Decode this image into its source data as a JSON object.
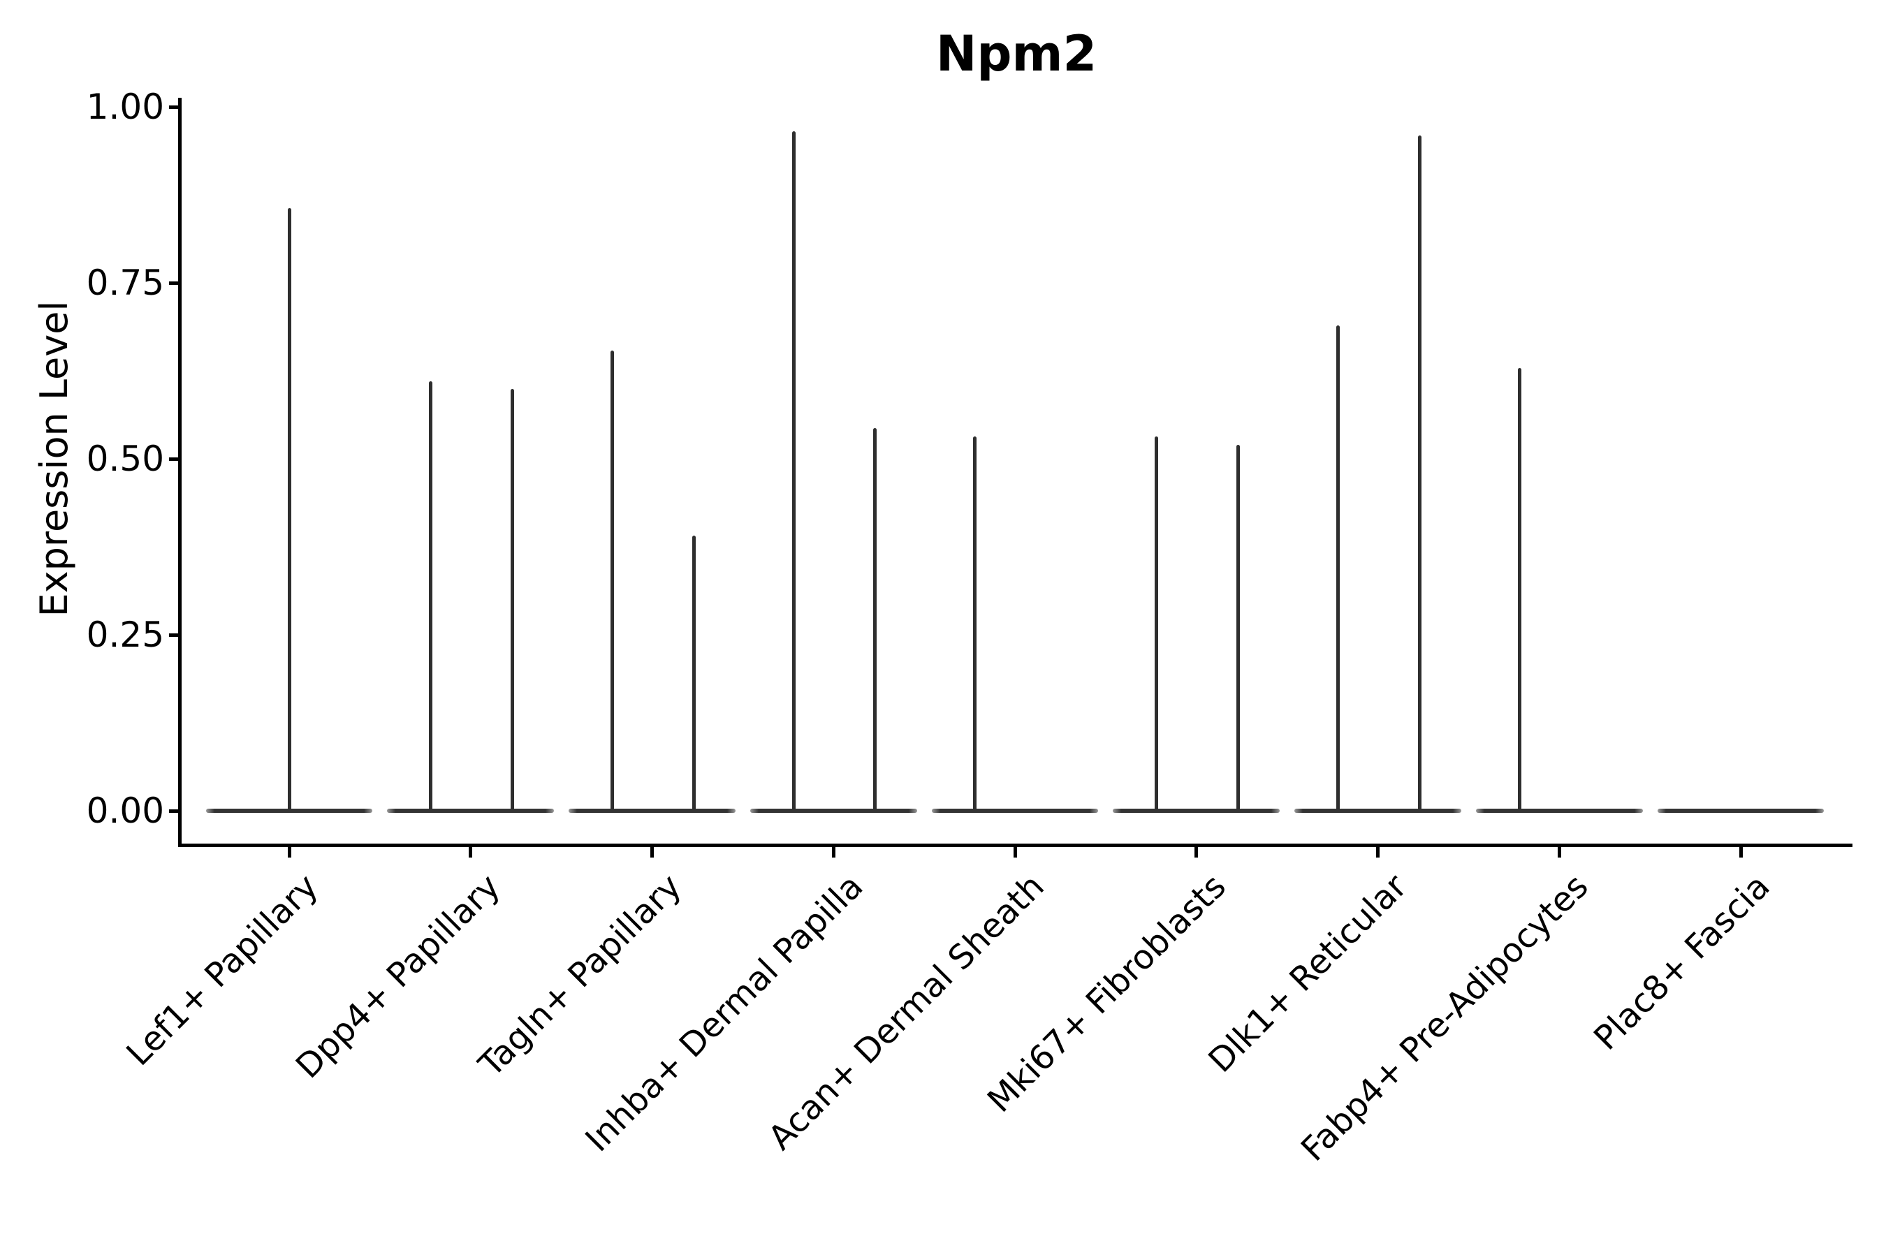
{
  "title": "Npm2",
  "y_axis": {
    "label": "Expression Level",
    "ticks": [
      {
        "label": "1.00",
        "value": 1.0
      },
      {
        "label": "0.75",
        "value": 0.75
      },
      {
        "label": "0.50",
        "value": 0.5
      },
      {
        "label": "0.25",
        "value": 0.25
      },
      {
        "label": "0.00",
        "value": 0.0
      }
    ]
  },
  "x_axis": {
    "categories": [
      "Lef1+ Papillary",
      "Dpp4+ Papillary",
      "Tagln+ Papillary",
      "Inhba+ Dermal Papilla",
      "Acan+ Dermal Sheath",
      "Mki67+ Fibroblasts",
      "Dlk1+ Reticular",
      "Fabp4+ Pre-Adipocytes",
      "Plac8+ Fascia"
    ]
  },
  "chart_data": {
    "type": "violin",
    "title": "Npm2",
    "xlabel": "",
    "ylabel": "Expression Level",
    "ylim": [
      0,
      1.0
    ],
    "yticks": [
      0.0,
      0.25,
      0.5,
      0.75,
      1.0
    ],
    "grid": false,
    "legend": "none",
    "violin_color": "#2e2e2e",
    "violin_base_width_frac": 0.92,
    "categories": [
      "Lef1+ Papillary",
      "Dpp4+ Papillary",
      "Tagln+ Papillary",
      "Inhba+ Dermal Papilla",
      "Acan+ Dermal Sheath",
      "Mki67+ Fibroblasts",
      "Dlk1+ Reticular",
      "Fabp4+ Pre-Adipocytes",
      "Plac8+ Fascia"
    ],
    "violins": [
      {
        "category": "Lef1+ Papillary",
        "base_value": 0.0,
        "spikes": [
          {
            "offset_frac": 0.0,
            "value": 0.856
          }
        ]
      },
      {
        "category": "Dpp4+ Papillary",
        "base_value": 0.0,
        "spikes": [
          {
            "offset_frac": -0.22,
            "value": 0.61
          },
          {
            "offset_frac": 0.23,
            "value": 0.599
          }
        ]
      },
      {
        "category": "Tagln+ Papillary",
        "base_value": 0.0,
        "spikes": [
          {
            "offset_frac": -0.22,
            "value": 0.654
          },
          {
            "offset_frac": 0.23,
            "value": 0.391
          }
        ]
      },
      {
        "category": "Inhba+ Dermal Papilla",
        "base_value": 0.0,
        "spikes": [
          {
            "offset_frac": -0.22,
            "value": 0.965
          },
          {
            "offset_frac": 0.23,
            "value": 0.544
          }
        ]
      },
      {
        "category": "Acan+ Dermal Sheath",
        "base_value": 0.0,
        "spikes": [
          {
            "offset_frac": -0.22,
            "value": 0.532
          }
        ]
      },
      {
        "category": "Mki67+ Fibroblasts",
        "base_value": 0.0,
        "spikes": [
          {
            "offset_frac": -0.22,
            "value": 0.532
          },
          {
            "offset_frac": 0.23,
            "value": 0.52
          }
        ]
      },
      {
        "category": "Dlk1+ Reticular",
        "base_value": 0.0,
        "spikes": [
          {
            "offset_frac": -0.22,
            "value": 0.689
          },
          {
            "offset_frac": 0.23,
            "value": 0.959
          }
        ]
      },
      {
        "category": "Fabp4+ Pre-Adipocytes",
        "base_value": 0.0,
        "spikes": [
          {
            "offset_frac": -0.22,
            "value": 0.629
          }
        ]
      },
      {
        "category": "Plac8+ Fascia",
        "base_value": 0.0,
        "spikes": []
      }
    ]
  }
}
